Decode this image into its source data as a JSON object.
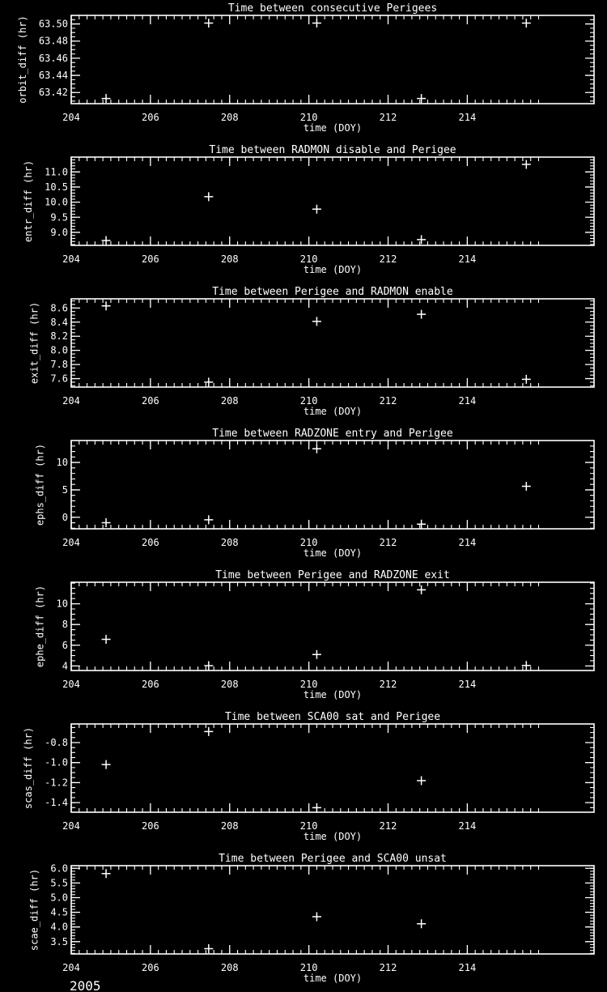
{
  "page": {
    "background": "#000000",
    "foreground": "#ffffff",
    "year_label": "2005"
  },
  "chart_data": [
    {
      "type": "scatter",
      "title": "Time between consecutive Perigees",
      "xlabel": "time (DOY)",
      "ylabel": "orbit_diff (hr)",
      "xlim": [
        204,
        217.2
      ],
      "xticks": [
        204,
        206,
        208,
        210,
        212,
        214
      ],
      "xtick_labels": [
        "204",
        "206",
        "208",
        "210",
        "212",
        "214"
      ],
      "x_minor_step": 0.2,
      "x_minor_max": 215.8,
      "ylim": [
        63.407,
        63.51
      ],
      "yticks": [
        63.42,
        63.44,
        63.46,
        63.48,
        63.5
      ],
      "ytick_labels": [
        "63.42",
        "63.44",
        "63.46",
        "63.48",
        "63.50"
      ],
      "y_minor_step": 0.005,
      "marker": "plus",
      "x": [
        204.88,
        207.47,
        210.2,
        212.84,
        215.49
      ],
      "y": [
        63.413,
        63.501,
        63.501,
        63.413,
        63.501
      ],
      "grid": false,
      "legend": null
    },
    {
      "type": "scatter",
      "title": "Time between RADMON disable and Perigee",
      "xlabel": "time (DOY)",
      "ylabel": "entr_diff (hr)",
      "xlim": [
        204,
        217.2
      ],
      "xticks": [
        204,
        206,
        208,
        210,
        212,
        214
      ],
      "xtick_labels": [
        "204",
        "206",
        "208",
        "210",
        "212",
        "214"
      ],
      "x_minor_step": 0.2,
      "x_minor_max": 215.8,
      "ylim": [
        8.57,
        11.49
      ],
      "yticks": [
        9.0,
        9.5,
        10.0,
        10.5,
        11.0
      ],
      "ytick_labels": [
        "9.0",
        "9.5",
        "10.0",
        "10.5",
        "11.0"
      ],
      "y_minor_step": 0.1,
      "marker": "plus",
      "x": [
        204.88,
        207.47,
        210.2,
        212.84,
        215.49
      ],
      "y": [
        8.73,
        10.18,
        9.77,
        8.76,
        11.25
      ],
      "grid": false,
      "legend": null
    },
    {
      "type": "scatter",
      "title": "Time between Perigee and RADMON enable",
      "xlabel": "time (DOY)",
      "ylabel": "exit_diff (hr)",
      "xlim": [
        204,
        217.2
      ],
      "xticks": [
        204,
        206,
        208,
        210,
        212,
        214
      ],
      "xtick_labels": [
        "204",
        "206",
        "208",
        "210",
        "212",
        "214"
      ],
      "x_minor_step": 0.2,
      "x_minor_max": 215.8,
      "ylim": [
        7.48,
        8.73
      ],
      "yticks": [
        7.6,
        7.8,
        8.0,
        8.2,
        8.4,
        8.6
      ],
      "ytick_labels": [
        "7.6",
        "7.8",
        "8.0",
        "8.2",
        "8.4",
        "8.6"
      ],
      "y_minor_step": 0.05,
      "marker": "plus",
      "x": [
        204.88,
        207.47,
        210.2,
        212.84,
        215.49
      ],
      "y": [
        8.63,
        7.55,
        8.41,
        8.51,
        7.59
      ],
      "grid": false,
      "legend": null
    },
    {
      "type": "scatter",
      "title": "Time between RADZONE entry and Perigee",
      "xlabel": "time (DOY)",
      "ylabel": "ephs_diff (hr)",
      "xlim": [
        204,
        217.2
      ],
      "xticks": [
        204,
        206,
        208,
        210,
        212,
        214
      ],
      "xtick_labels": [
        "204",
        "206",
        "208",
        "210",
        "212",
        "214"
      ],
      "x_minor_step": 0.2,
      "x_minor_max": 215.8,
      "ylim": [
        -2.1,
        14.0
      ],
      "yticks": [
        0,
        5,
        10
      ],
      "ytick_labels": [
        "0",
        "5",
        "10"
      ],
      "y_minor_step": 1,
      "marker": "plus",
      "x": [
        204.88,
        207.47,
        210.2,
        212.84,
        215.49
      ],
      "y": [
        -1.0,
        -0.45,
        12.5,
        -1.25,
        5.65
      ],
      "grid": false,
      "legend": null
    },
    {
      "type": "scatter",
      "title": "Time between Perigee and RADZONE exit",
      "xlabel": "time (DOY)",
      "ylabel": "ephe_diff (hr)",
      "xlim": [
        204,
        217.2
      ],
      "xticks": [
        204,
        206,
        208,
        210,
        212,
        214
      ],
      "xtick_labels": [
        "204",
        "206",
        "208",
        "210",
        "212",
        "214"
      ],
      "x_minor_step": 0.2,
      "x_minor_max": 215.8,
      "ylim": [
        3.56,
        12.08
      ],
      "yticks": [
        4,
        6,
        8,
        10
      ],
      "ytick_labels": [
        "4",
        "6",
        "8",
        "10"
      ],
      "y_minor_step": 0.5,
      "marker": "plus",
      "x": [
        204.88,
        207.47,
        210.2,
        212.84,
        215.49
      ],
      "y": [
        6.57,
        4.03,
        5.1,
        11.35,
        4.05
      ],
      "grid": false,
      "legend": null
    },
    {
      "type": "scatter",
      "title": "Time between SCA00 sat and Perigee",
      "xlabel": "time (DOY)",
      "ylabel": "scas_diff (hr)",
      "xlim": [
        204,
        217.2
      ],
      "xticks": [
        204,
        206,
        208,
        210,
        212,
        214
      ],
      "xtick_labels": [
        "204",
        "206",
        "208",
        "210",
        "212",
        "214"
      ],
      "x_minor_step": 0.2,
      "x_minor_max": 215.8,
      "ylim": [
        -1.496,
        -0.614
      ],
      "yticks": [
        -1.4,
        -1.2,
        -1.0,
        -0.8
      ],
      "ytick_labels": [
        "-1.4",
        "-1.2",
        "-1.0",
        "-0.8"
      ],
      "y_minor_step": 0.05,
      "marker": "plus",
      "x": [
        204.88,
        207.47,
        210.2,
        212.84
      ],
      "y": [
        -1.02,
        -0.69,
        -1.45,
        -1.18
      ],
      "grid": false,
      "legend": null
    },
    {
      "type": "scatter",
      "title": "Time between Perigee and SCA00 unsat",
      "xlabel": "time (DOY)",
      "ylabel": "scae_diff (hr)",
      "xlim": [
        204,
        217.2
      ],
      "xticks": [
        204,
        206,
        208,
        210,
        212,
        214
      ],
      "xtick_labels": [
        "204",
        "206",
        "208",
        "210",
        "212",
        "214"
      ],
      "x_minor_step": 0.2,
      "x_minor_max": 215.8,
      "ylim": [
        3.08,
        6.09
      ],
      "yticks": [
        3.5,
        4.0,
        4.5,
        5.0,
        5.5,
        6.0
      ],
      "ytick_labels": [
        "3.5",
        "4.0",
        "4.5",
        "5.0",
        "5.5",
        "6.0"
      ],
      "y_minor_step": 0.1,
      "marker": "plus",
      "x": [
        204.88,
        207.47,
        210.2,
        212.84
      ],
      "y": [
        5.82,
        3.26,
        4.35,
        4.11
      ],
      "grid": false,
      "legend": null
    }
  ]
}
